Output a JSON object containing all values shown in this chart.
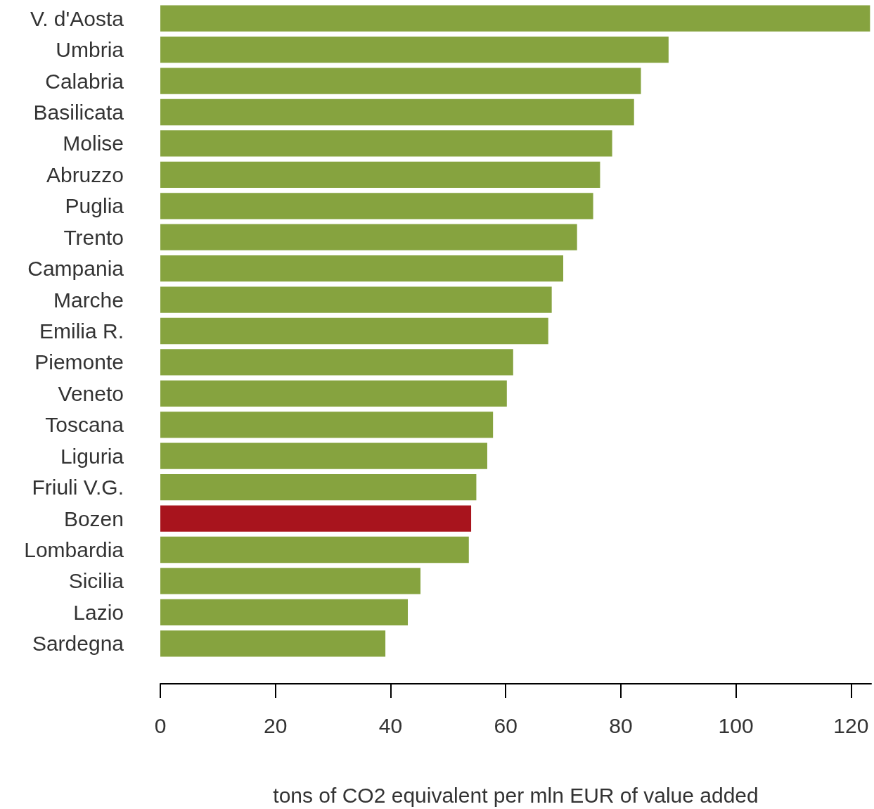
{
  "chart_data": {
    "type": "bar",
    "orientation": "horizontal",
    "xlabel": "tons of CO2 equivalent per mln EUR of value added",
    "categories": [
      "V. d'Aosta",
      "Umbria",
      "Calabria",
      "Basilicata",
      "Molise",
      "Abruzzo",
      "Puglia",
      "Trento",
      "Campania",
      "Marche",
      "Emilia R.",
      "Piemonte",
      "Veneto",
      "Toscana",
      "Liguria",
      "Friuli V.G.",
      "Bozen",
      "Lombardia",
      "Sicilia",
      "Lazio",
      "Sardegna"
    ],
    "values": [
      123.3,
      88.3,
      83.5,
      82.3,
      78.5,
      76.4,
      75.2,
      72.4,
      70.0,
      68.0,
      67.4,
      61.3,
      60.2,
      57.8,
      56.8,
      54.9,
      54.0,
      53.6,
      45.2,
      43.0,
      39.1
    ],
    "colors": [
      "#86a33f",
      "#86a33f",
      "#86a33f",
      "#86a33f",
      "#86a33f",
      "#86a33f",
      "#86a33f",
      "#86a33f",
      "#86a33f",
      "#86a33f",
      "#86a33f",
      "#86a33f",
      "#86a33f",
      "#86a33f",
      "#86a33f",
      "#86a33f",
      "#a8141d",
      "#86a33f",
      "#86a33f",
      "#86a33f",
      "#86a33f"
    ],
    "xlim": [
      0,
      123.5
    ],
    "xticks": [
      0,
      20,
      40,
      60,
      80,
      100,
      120
    ],
    "grid": false
  }
}
